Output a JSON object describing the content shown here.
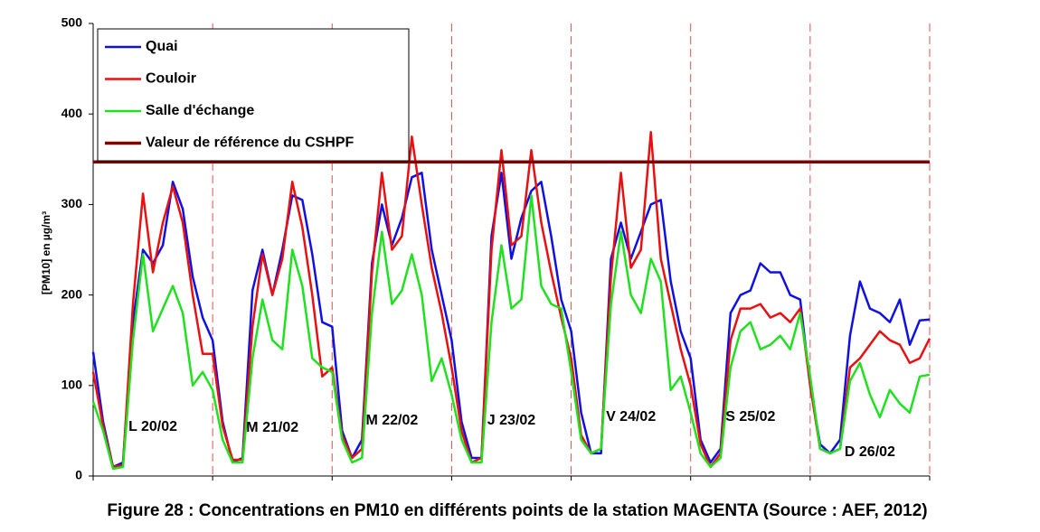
{
  "chart_data": {
    "type": "line",
    "caption": "Figure 28 : Concentrations en PM10 en différents points de la station MAGENTA (Source : AEF, 2012)",
    "y_label": "[PM10] en µg/m³",
    "x": [
      0,
      2,
      4,
      6,
      8,
      10,
      12,
      14,
      16,
      18,
      20,
      22,
      24,
      26,
      28,
      30,
      32,
      34,
      36,
      38,
      40,
      42,
      44,
      46,
      48,
      50,
      52,
      54,
      56,
      58,
      60,
      62,
      64,
      66,
      68,
      70,
      72,
      74,
      76,
      78,
      80,
      82,
      84,
      86,
      88,
      90,
      92,
      94,
      96,
      98,
      100,
      102,
      104,
      106,
      108,
      110,
      112,
      114,
      116,
      118,
      120,
      122,
      124,
      126,
      128,
      130,
      132,
      134,
      136,
      138,
      140,
      142,
      144,
      146,
      148,
      150,
      152,
      154,
      156,
      158,
      160,
      162,
      164,
      166,
      168
    ],
    "xlim": [
      0,
      168
    ],
    "xticks": [
      0,
      24,
      48,
      72,
      96,
      120,
      144,
      168
    ],
    "ylim": [
      0,
      500
    ],
    "yticks": [
      0,
      100,
      200,
      300,
      400,
      500
    ],
    "day_labels": [
      "L 20/02",
      "M 21/02",
      "M 22/02",
      "J 23/02",
      "V 24/02",
      "S 25/02",
      "D 26/02"
    ],
    "series": [
      {
        "name": "Quai",
        "color": "#1010e0",
        "values": [
          137,
          60,
          10,
          15,
          170,
          250,
          235,
          255,
          325,
          295,
          220,
          175,
          150,
          60,
          15,
          20,
          205,
          250,
          200,
          250,
          310,
          305,
          245,
          170,
          165,
          50,
          20,
          40,
          235,
          300,
          255,
          285,
          330,
          335,
          250,
          200,
          150,
          60,
          20,
          20,
          265,
          335,
          240,
          285,
          315,
          325,
          265,
          195,
          160,
          70,
          25,
          25,
          240,
          280,
          240,
          270,
          300,
          305,
          215,
          160,
          130,
          40,
          15,
          30,
          180,
          200,
          205,
          235,
          225,
          225,
          200,
          195,
          100,
          35,
          25,
          40,
          155,
          215,
          185,
          180,
          170,
          195,
          145,
          172,
          173
        ]
      },
      {
        "name": "Couloir",
        "color": "#e81010",
        "values": [
          115,
          55,
          10,
          12,
          190,
          312,
          225,
          280,
          320,
          280,
          200,
          135,
          135,
          55,
          18,
          18,
          165,
          245,
          200,
          240,
          325,
          275,
          200,
          110,
          120,
          45,
          20,
          30,
          225,
          335,
          250,
          265,
          375,
          300,
          230,
          180,
          120,
          50,
          15,
          20,
          250,
          360,
          255,
          265,
          360,
          280,
          225,
          175,
          130,
          45,
          25,
          30,
          220,
          335,
          230,
          250,
          380,
          240,
          190,
          140,
          100,
          35,
          10,
          25,
          150,
          185,
          185,
          190,
          175,
          180,
          170,
          185,
          100,
          30,
          25,
          30,
          120,
          130,
          145,
          160,
          150,
          145,
          125,
          130,
          152
        ]
      },
      {
        "name": "Salle d'échange",
        "color": "#20e020",
        "values": [
          82,
          50,
          8,
          10,
          150,
          245,
          160,
          185,
          210,
          180,
          100,
          115,
          95,
          40,
          15,
          15,
          130,
          195,
          150,
          140,
          250,
          210,
          130,
          120,
          115,
          40,
          15,
          20,
          180,
          270,
          190,
          205,
          245,
          200,
          105,
          130,
          90,
          40,
          15,
          15,
          170,
          255,
          185,
          195,
          310,
          210,
          190,
          185,
          115,
          40,
          25,
          30,
          190,
          270,
          200,
          180,
          240,
          215,
          95,
          110,
          70,
          25,
          10,
          20,
          120,
          160,
          170,
          140,
          145,
          155,
          140,
          180,
          110,
          30,
          25,
          30,
          105,
          125,
          90,
          65,
          95,
          80,
          70,
          110,
          112
        ]
      }
    ],
    "reference": {
      "name": "Valeur de référence du CSHPF",
      "value": 347,
      "color": "#800000"
    }
  }
}
